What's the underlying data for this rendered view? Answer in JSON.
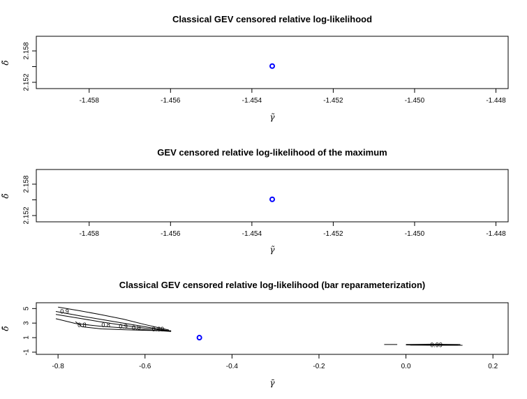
{
  "chart_data": [
    {
      "type": "scatter",
      "title": "Classical GEV censored relative log-likelihood",
      "xlabel": "γ̃",
      "ylabel": "δ̃",
      "xlim": [
        -1.4593,
        -1.4477
      ],
      "ylim": [
        2.1508,
        2.1608
      ],
      "xticks": [
        -1.458,
        -1.456,
        -1.454,
        -1.452,
        -1.45,
        -1.448
      ],
      "xtick_labels": [
        "-1.458",
        "-1.456",
        "-1.454",
        "-1.452",
        "-1.450",
        "-1.448"
      ],
      "yticks": [
        2.152,
        2.155,
        2.158
      ],
      "ytick_labels": [
        "2.152",
        "",
        "2.158"
      ],
      "points": [
        {
          "x": -1.4535,
          "y": 2.1551
        }
      ],
      "point_color": "#0000ff",
      "grid": false
    },
    {
      "type": "scatter",
      "title": "GEV censored relative log-likelihood of the maximum",
      "xlabel": "γ̃",
      "ylabel": "δ̃",
      "xlim": [
        -1.4593,
        -1.4477
      ],
      "ylim": [
        2.1508,
        2.1608
      ],
      "xticks": [
        -1.458,
        -1.456,
        -1.454,
        -1.452,
        -1.45,
        -1.448
      ],
      "xtick_labels": [
        "-1.458",
        "-1.456",
        "-1.454",
        "-1.452",
        "-1.450",
        "-1.448"
      ],
      "yticks": [
        2.152,
        2.155,
        2.158
      ],
      "ytick_labels": [
        "2.152",
        "",
        "2.158"
      ],
      "points": [
        {
          "x": -1.4535,
          "y": 2.1551
        }
      ],
      "point_color": "#0000ff",
      "grid": false
    },
    {
      "type": "contour",
      "title": "Classical GEV censored relative log-likelihood (bar reparameterization)",
      "xlabel": "γ̄",
      "ylabel": "δ̄",
      "xlim": [
        -0.85,
        0.235
      ],
      "ylim": [
        -1.3,
        5.8
      ],
      "xticks": [
        -0.8,
        -0.6,
        -0.4,
        -0.2,
        0.0,
        0.2
      ],
      "xtick_labels": [
        "-0.8",
        "-0.6",
        "-0.4",
        "-0.2",
        "0.0",
        "0.2"
      ],
      "yticks": [
        -1,
        1,
        3,
        5
      ],
      "ytick_labels": [
        "-1",
        "1",
        "3",
        "5"
      ],
      "points": [
        {
          "x": -0.475,
          "y": 1.0
        }
      ],
      "point_color": "#0000ff",
      "contours": [
        {
          "points": [
            [
              -0.8,
              5.2
            ],
            [
              -0.75,
              4.7
            ],
            [
              -0.7,
              4.15
            ],
            [
              -0.65,
              3.55
            ],
            [
              -0.6,
              2.8
            ],
            [
              -0.545,
              2.05
            ]
          ]
        },
        {
          "points": [
            [
              -0.805,
              4.6
            ],
            [
              -0.75,
              4.0
            ],
            [
              -0.7,
              3.5
            ],
            [
              -0.65,
              3.0
            ],
            [
              -0.6,
              2.5
            ],
            [
              -0.545,
              1.95
            ]
          ]
        },
        {
          "points": [
            [
              -0.805,
              4.2
            ],
            [
              -0.75,
              3.65
            ],
            [
              -0.7,
              3.15
            ],
            [
              -0.65,
              2.7
            ],
            [
              -0.6,
              2.3
            ],
            [
              -0.54,
              1.9
            ]
          ]
        },
        {
          "points": [
            [
              -0.805,
              3.6
            ],
            [
              -0.76,
              2.95
            ],
            [
              -0.7,
              2.55
            ],
            [
              -0.65,
              2.35
            ],
            [
              -0.6,
              2.1
            ],
            [
              -0.54,
              1.85
            ]
          ]
        },
        {
          "points": [
            [
              -0.76,
              3.2
            ],
            [
              -0.745,
              2.5
            ],
            [
              -0.7,
              2.2
            ],
            [
              -0.65,
              2.1
            ],
            [
              -0.6,
              2.0
            ],
            [
              -0.54,
              1.95
            ]
          ]
        },
        {
          "points": [
            [
              -0.05,
              0.05
            ],
            [
              -0.02,
              0.05
            ]
          ]
        },
        {
          "points": [
            [
              0.0,
              0.0
            ],
            [
              0.05,
              -0.05
            ],
            [
              0.13,
              -0.05
            ]
          ]
        },
        {
          "points": [
            [
              0.0,
              0.05
            ],
            [
              0.06,
              0.1
            ],
            [
              0.125,
              0.05
            ]
          ]
        },
        {
          "points": [
            [
              0.01,
              -0.02
            ],
            [
              0.12,
              0.0
            ]
          ]
        }
      ],
      "contour_labels": [
        {
          "text": "0.9",
          "x": -0.785,
          "y": 4.55
        },
        {
          "text": "0.8",
          "x": -0.745,
          "y": 2.65
        },
        {
          "text": "0.8",
          "x": -0.69,
          "y": 2.65
        },
        {
          "text": "0.9",
          "x": -0.65,
          "y": 2.5
        },
        {
          "text": "0.8",
          "x": -0.62,
          "y": 2.3
        },
        {
          "text": "0.89",
          "x": -0.57,
          "y": 2.1
        },
        {
          "text": "0.99",
          "x": 0.07,
          "y": -0.05
        }
      ],
      "grid": false
    }
  ]
}
